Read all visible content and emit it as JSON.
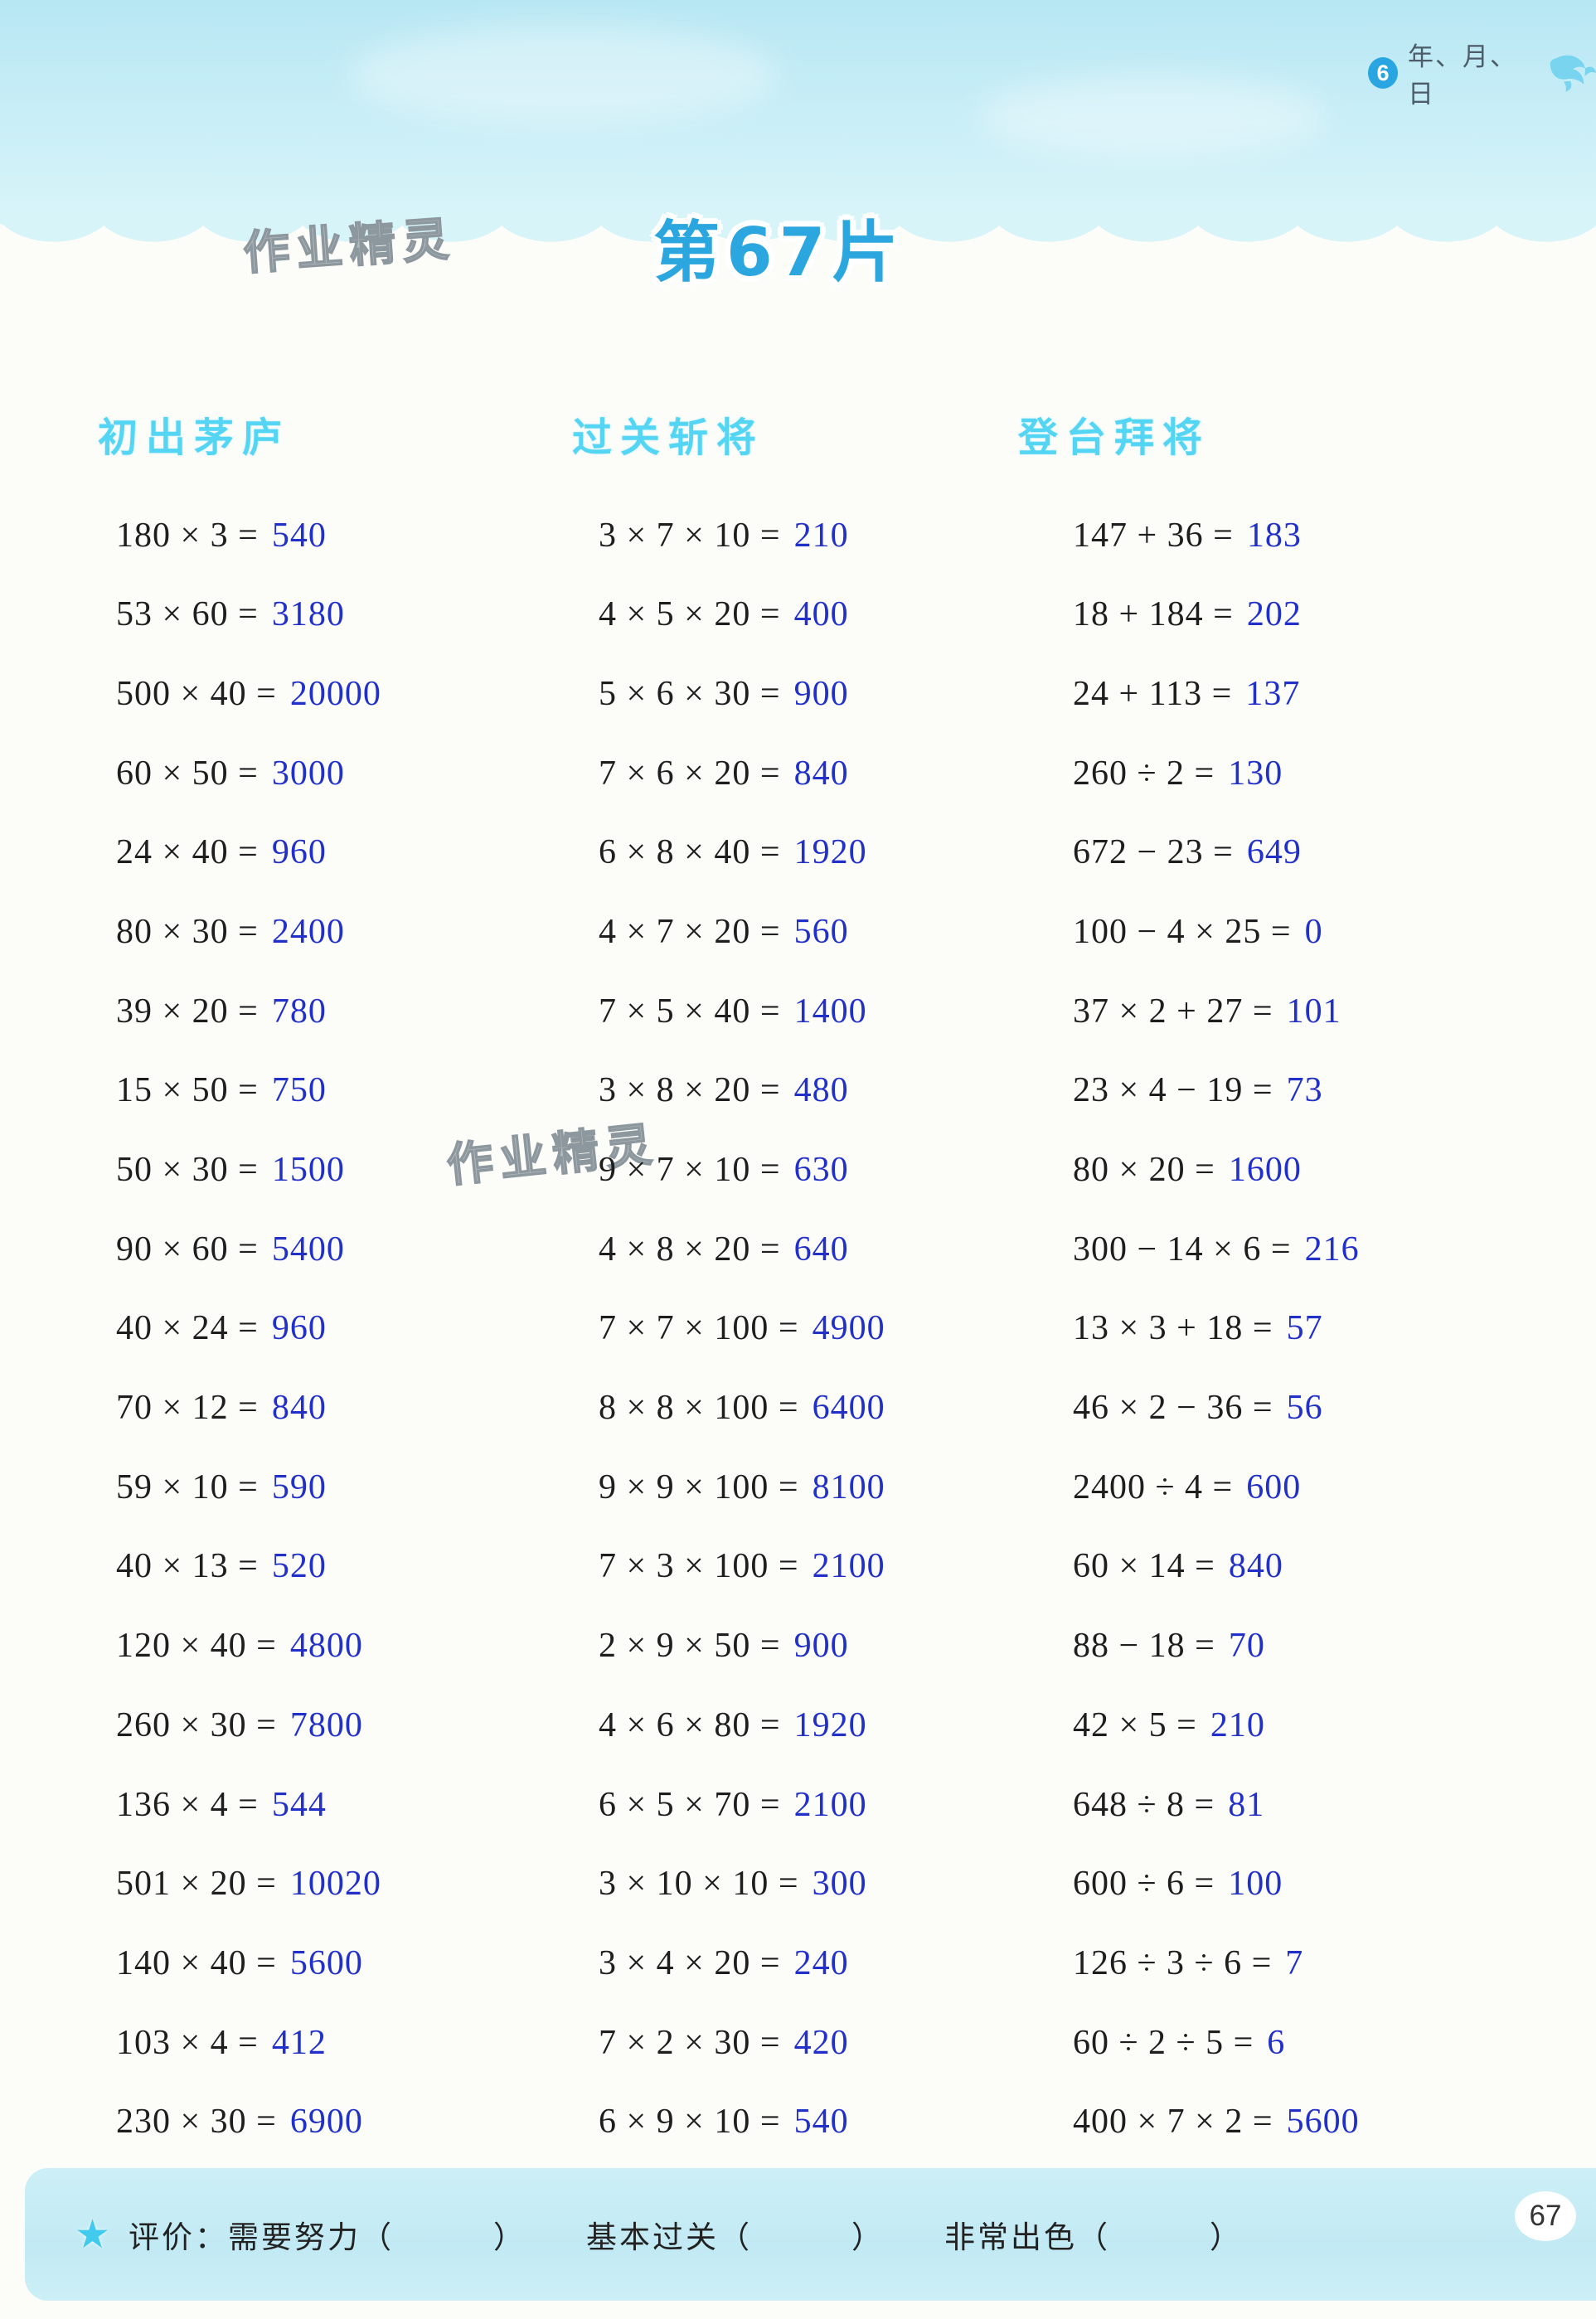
{
  "page": {
    "title": "第67片",
    "unit_badge": "6",
    "unit_label": "年、月、日",
    "watermark_top": "作业精灵",
    "watermark_middle": "作业精灵",
    "page_number": "67"
  },
  "colors": {
    "band_blue": "#c7ecf5",
    "title_blue": "#2ba6de",
    "header_cyan": "#55d5f4",
    "answer_blue": "#2130c8",
    "problem_black": "#1e1e1e",
    "star_cyan": "#41c9ee"
  },
  "columns": [
    {
      "header": "初出茅庐",
      "problems": [
        {
          "q": "180 × 3 =",
          "a": "540"
        },
        {
          "q": "53 × 60 =",
          "a": "3180"
        },
        {
          "q": "500 × 40 =",
          "a": "20000"
        },
        {
          "q": "60 × 50 =",
          "a": "3000"
        },
        {
          "q": "24 × 40 =",
          "a": "960"
        },
        {
          "q": "80 × 30 =",
          "a": "2400"
        },
        {
          "q": "39 × 20 =",
          "a": "780"
        },
        {
          "q": "15 × 50 =",
          "a": "750"
        },
        {
          "q": "50 × 30 =",
          "a": "1500"
        },
        {
          "q": "90 × 60 =",
          "a": "5400"
        },
        {
          "q": "40 × 24 =",
          "a": "960"
        },
        {
          "q": "70 × 12 =",
          "a": "840"
        },
        {
          "q": "59 × 10 =",
          "a": "590"
        },
        {
          "q": "40 × 13 =",
          "a": "520"
        },
        {
          "q": "120 × 40 =",
          "a": "4800"
        },
        {
          "q": "260 × 30 =",
          "a": "7800"
        },
        {
          "q": "136 × 4 =",
          "a": "544"
        },
        {
          "q": "501 × 20 =",
          "a": "10020"
        },
        {
          "q": "140 × 40 =",
          "a": "5600"
        },
        {
          "q": "103 × 4 =",
          "a": "412"
        },
        {
          "q": "230 × 30 =",
          "a": "6900"
        }
      ]
    },
    {
      "header": "过关斩将",
      "problems": [
        {
          "q": "3 × 7 × 10 =",
          "a": "210"
        },
        {
          "q": "4 × 5 × 20 =",
          "a": "400"
        },
        {
          "q": "5 × 6 × 30 =",
          "a": "900"
        },
        {
          "q": "7 × 6 × 20 =",
          "a": "840"
        },
        {
          "q": "6 × 8 × 40 =",
          "a": "1920"
        },
        {
          "q": "4 × 7 × 20 =",
          "a": "560"
        },
        {
          "q": "7 × 5 × 40 =",
          "a": "1400"
        },
        {
          "q": "3 × 8 × 20 =",
          "a": "480"
        },
        {
          "q": "9 × 7 × 10 =",
          "a": "630"
        },
        {
          "q": "4 × 8 × 20 =",
          "a": "640"
        },
        {
          "q": "7 × 7 × 100 =",
          "a": "4900"
        },
        {
          "q": "8 × 8 × 100 =",
          "a": "6400"
        },
        {
          "q": "9 × 9 × 100 =",
          "a": "8100"
        },
        {
          "q": "7 × 3 × 100 =",
          "a": "2100"
        },
        {
          "q": "2 × 9 × 50 =",
          "a": "900"
        },
        {
          "q": "4 × 6 × 80 =",
          "a": "1920"
        },
        {
          "q": "6 × 5 × 70 =",
          "a": "2100"
        },
        {
          "q": "3 × 10 × 10 =",
          "a": "300"
        },
        {
          "q": "3 × 4 × 20 =",
          "a": "240"
        },
        {
          "q": "7 × 2 × 30 =",
          "a": "420"
        },
        {
          "q": "6 × 9 × 10 =",
          "a": "540"
        }
      ]
    },
    {
      "header": "登台拜将",
      "problems": [
        {
          "q": "147 + 36 =",
          "a": "183"
        },
        {
          "q": "18 + 184 =",
          "a": "202"
        },
        {
          "q": "24 + 113 =",
          "a": "137"
        },
        {
          "q": "260 ÷ 2 =",
          "a": "130"
        },
        {
          "q": "672 − 23 =",
          "a": "649"
        },
        {
          "q": "100 − 4 × 25 =",
          "a": "0"
        },
        {
          "q": "37 × 2 + 27 =",
          "a": "101"
        },
        {
          "q": "23 × 4 − 19 =",
          "a": "73"
        },
        {
          "q": "80 × 20 =",
          "a": "1600"
        },
        {
          "q": "300 − 14 × 6 =",
          "a": "216"
        },
        {
          "q": "13 × 3 + 18 =",
          "a": "57"
        },
        {
          "q": "46 × 2 − 36 =",
          "a": "56"
        },
        {
          "q": "2400 ÷ 4 =",
          "a": "600"
        },
        {
          "q": "60 × 14 =",
          "a": "840"
        },
        {
          "q": "88 − 18 =",
          "a": "70"
        },
        {
          "q": "42 × 5 =",
          "a": "210"
        },
        {
          "q": "648 ÷ 8 =",
          "a": "81"
        },
        {
          "q": "600 ÷ 6 =",
          "a": "100"
        },
        {
          "q": "126 ÷ 3 ÷ 6 =",
          "a": "7"
        },
        {
          "q": "60 ÷ 2 ÷ 5 =",
          "a": "6"
        },
        {
          "q": "400 × 7 × 2 =",
          "a": "5600"
        }
      ]
    }
  ],
  "footer": {
    "star": "★",
    "label": "评价：",
    "options": [
      "需要努力（　　　）",
      "基本过关（　　　）",
      "非常出色（　　　）"
    ]
  }
}
